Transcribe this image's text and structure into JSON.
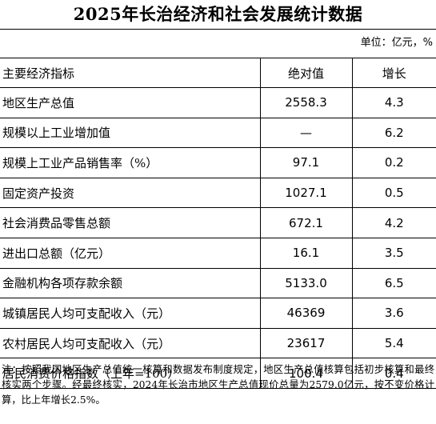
{
  "title": "2025年长治经济和社会发展统计数据",
  "unit": "单位：亿元，%",
  "table": {
    "headers": [
      "主要经济指标",
      "绝对值",
      "增长"
    ],
    "rows": [
      {
        "indicator": "地区生产总值",
        "value": "2558.3",
        "growth": "4.3"
      },
      {
        "indicator": "规模以上工业增加值",
        "value": "—",
        "growth": "6.2"
      },
      {
        "indicator": "规模上工业产品销售率（%）",
        "value": "97.1",
        "growth": "0.2"
      },
      {
        "indicator": "固定资产投资",
        "value": "1027.1",
        "growth": "0.5"
      },
      {
        "indicator": "社会消费品零售总额",
        "value": "672.1",
        "growth": "4.2"
      },
      {
        "indicator": "进出口总额（亿元）",
        "value": "16.1",
        "growth": "3.5"
      },
      {
        "indicator": "金融机构各项存款余额",
        "value": "5133.0",
        "growth": "6.5"
      },
      {
        "indicator": "城镇居民人均可支配收入（元）",
        "value": "46369",
        "growth": "3.6"
      },
      {
        "indicator": "农村居民人均可支配收入（元）",
        "value": "23617",
        "growth": "5.4"
      },
      {
        "indicator": "居民消费价格指数（上年=100）",
        "value": "100.4",
        "growth": "0.4"
      }
    ]
  },
  "note": "注：按照我国地区生产总值统一核算和数据发布制度规定，地区生产总值核算包括初步核算和最终核实两个步骤。经最终核实，2024年长治市地区生产总值现价总量为2579.0亿元，按不变价格计算，比上年增长2.5%。"
}
